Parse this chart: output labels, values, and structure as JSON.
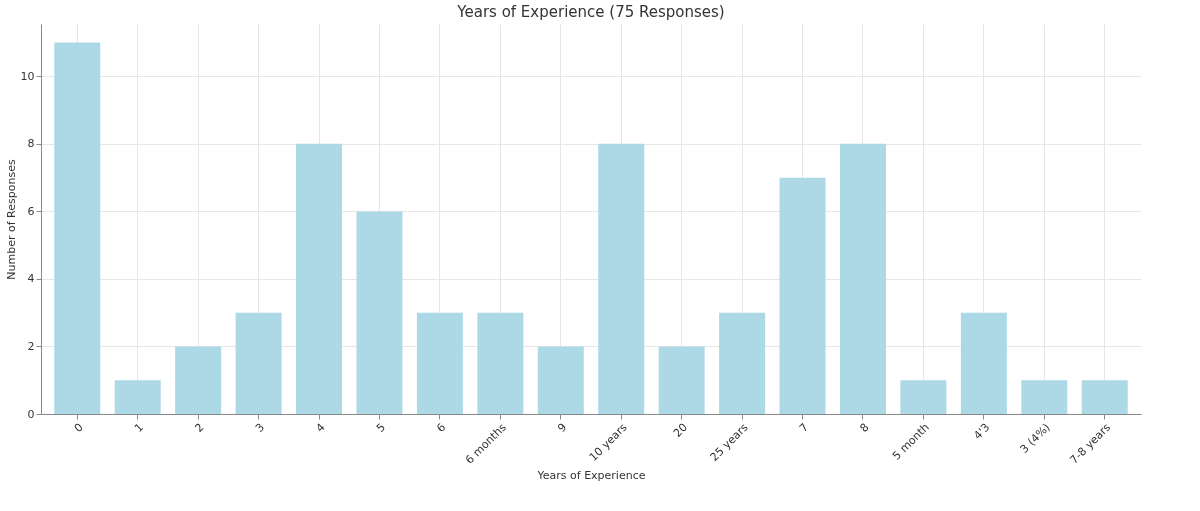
{
  "chart_data": {
    "type": "bar",
    "title": "Years of Experience (75 Responses)",
    "xlabel": "Years of Experience",
    "ylabel": "Number of Responses",
    "categories": [
      "0",
      "1",
      "2",
      "3",
      "4",
      "5",
      "6",
      "6 months",
      "9",
      "10 years",
      "20",
      "25 years",
      "7",
      "8",
      "5 month",
      "4'3",
      "3 (4%)",
      "7-8 years"
    ],
    "values": [
      11,
      1,
      2,
      3,
      8,
      6,
      3,
      3,
      2,
      8,
      2,
      3,
      7,
      8,
      1,
      3,
      1,
      1
    ],
    "color": "#add8e6",
    "ylim": [
      0,
      11.55
    ],
    "yticks": [
      0,
      2,
      4,
      6,
      8,
      10
    ],
    "grid": true
  }
}
